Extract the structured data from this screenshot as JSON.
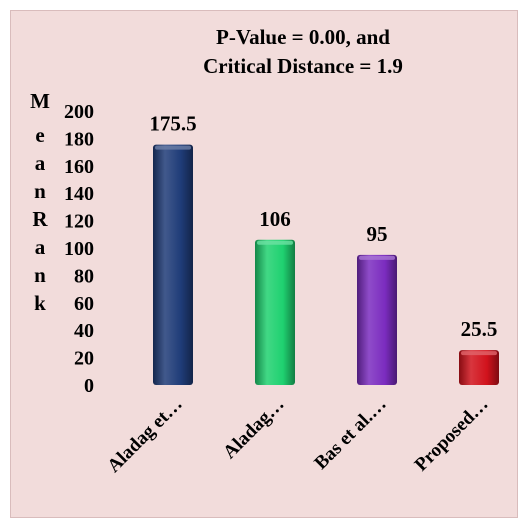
{
  "chart_data": {
    "type": "bar",
    "title": [
      "P-Value = 0.00, and",
      "Critical Distance = 1.9"
    ],
    "ylabel": "Mean Rank",
    "xlabel": "",
    "ylim": [
      0,
      200
    ],
    "yticks": [
      0,
      20,
      40,
      60,
      80,
      100,
      120,
      140,
      160,
      180,
      200
    ],
    "grid": false,
    "legend": "none",
    "categories": [
      "Aladag et…",
      "Aladag…",
      "Bas et al.…",
      "Proposed…"
    ],
    "values": [
      175.5,
      106,
      95,
      25.5
    ],
    "data_labels": [
      "175.5",
      "106",
      "95",
      "25.5"
    ],
    "colors": [
      "#1f3c78",
      "#1fd170",
      "#7b2cbf",
      "#d1121c"
    ]
  }
}
